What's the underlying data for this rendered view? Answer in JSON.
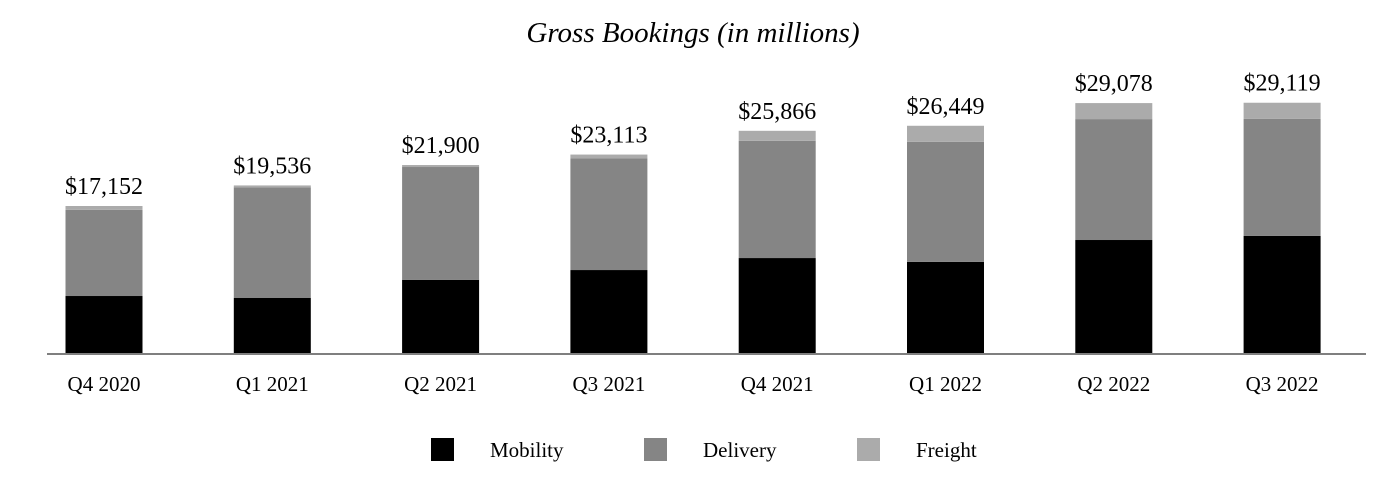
{
  "chart_data": {
    "type": "bar",
    "stacked": true,
    "title": "Gross Bookings (in millions)",
    "xlabel": "",
    "ylabel": "",
    "ylim": [
      0,
      30000
    ],
    "grid": false,
    "legend_placement": "bottom",
    "categories": [
      "Q4 2020",
      "Q1 2021",
      "Q2 2021",
      "Q3 2021",
      "Q4 2021",
      "Q1 2022",
      "Q2 2022",
      "Q3 2022"
    ],
    "totals": [
      17152,
      19536,
      21900,
      23113,
      25866,
      26449,
      29078,
      29119
    ],
    "total_labels": [
      "$17,152",
      "$19,536",
      "$21,900",
      "$23,113",
      "$25,866",
      "$26,449",
      "$29,078",
      "$29,119"
    ],
    "series": [
      {
        "name": "Mobility",
        "color": "#000000",
        "values": [
          6720,
          6490,
          8600,
          9730,
          11120,
          10670,
          13210,
          13680
        ]
      },
      {
        "name": "Delivery",
        "color": "#858585",
        "values": [
          9982,
          12816,
          13070,
          12923,
          13586,
          13924,
          14013,
          13584
        ]
      },
      {
        "name": "Freight",
        "color": "#ababab",
        "values": [
          450,
          230,
          230,
          460,
          1160,
          1855,
          1855,
          1855
        ]
      }
    ],
    "axis_color": "#7f7f7f"
  }
}
